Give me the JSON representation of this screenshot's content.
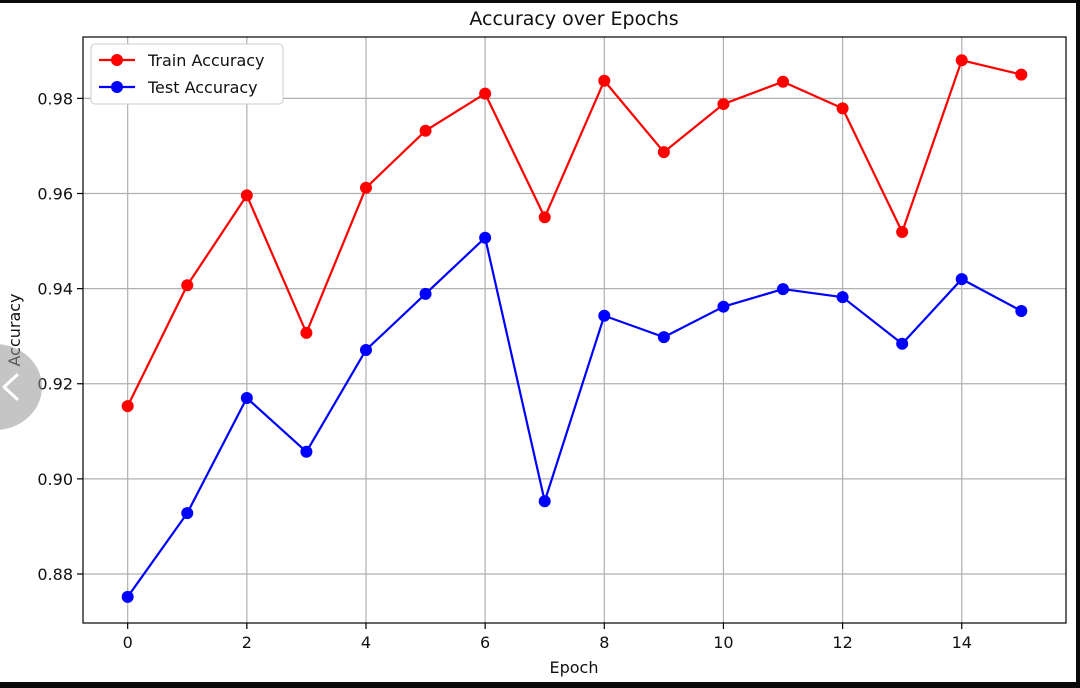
{
  "chart_data": {
    "type": "line",
    "title": "Accuracy over Epochs",
    "xlabel": "Epoch",
    "ylabel": "Accuracy",
    "x": [
      0,
      1,
      2,
      3,
      4,
      5,
      6,
      7,
      8,
      9,
      10,
      11,
      12,
      13,
      14,
      15
    ],
    "xlim": [
      -0.75,
      15.75
    ],
    "ylim": [
      0.8697,
      0.9929
    ],
    "xticks": [
      "0",
      "2",
      "4",
      "6",
      "8",
      "10",
      "12",
      "14"
    ],
    "yticks": [
      "0.88",
      "0.90",
      "0.92",
      "0.94",
      "0.96",
      "0.98"
    ],
    "grid": true,
    "legend_position": "top-left",
    "series": [
      {
        "name": "Train Accuracy",
        "color": "#ff0000",
        "marker": "circle",
        "values": [
          0.9153,
          0.9407,
          0.9596,
          0.9307,
          0.9612,
          0.9732,
          0.981,
          0.955,
          0.9837,
          0.9687,
          0.9788,
          0.9835,
          0.9779,
          0.9519,
          0.988,
          0.985
        ]
      },
      {
        "name": "Test Accuracy",
        "color": "#0000ff",
        "marker": "circle",
        "values": [
          0.8752,
          0.8928,
          0.917,
          0.9057,
          0.9271,
          0.9389,
          0.9507,
          0.8953,
          0.9343,
          0.9298,
          0.9362,
          0.9399,
          0.9382,
          0.9284,
          0.942,
          0.9353
        ]
      }
    ]
  },
  "overlay": {
    "back_icon": "chevron-left-icon"
  }
}
